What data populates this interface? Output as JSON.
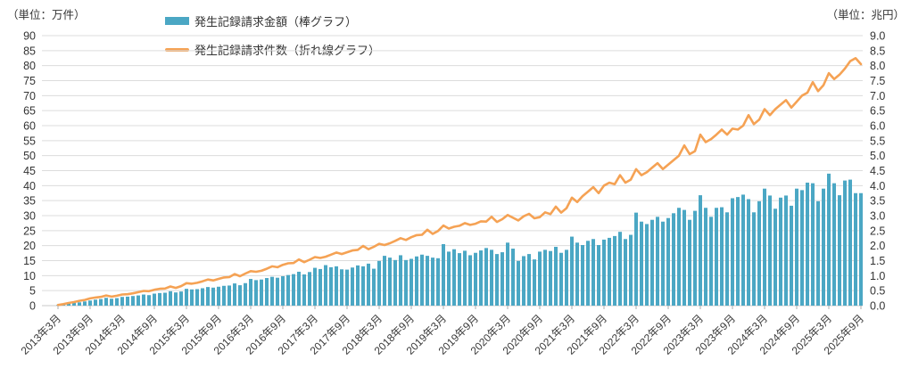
{
  "units": {
    "left": "（単位：万件）",
    "right": "（単位：兆円）"
  },
  "legend": {
    "items": [
      {
        "label": "発生記録請求金額（棒グラフ）",
        "type": "bar",
        "color": "#4BA7C4"
      },
      {
        "label": "発生記録請求件数（折れ線グラフ）",
        "type": "line",
        "color": "#F5A254"
      }
    ]
  },
  "colors": {
    "bar": "#4BA7C4",
    "line": "#F5A254",
    "grid": "#DCDCDC",
    "axis_line": "#C9C9C9",
    "tick": "#ADADAD",
    "text": "#333333",
    "background": "#FFFFFF"
  },
  "chart_data": {
    "type": "bar+line combo (monthly)",
    "start_month": "2013年3月",
    "end_month": "2025年9月",
    "x_tick_labels": [
      "2013年3月",
      "2013年9月",
      "2014年3月",
      "2014年9月",
      "2015年3月",
      "2015年9月",
      "2016年3月",
      "2016年9月",
      "2017年3月",
      "2017年9月",
      "2018年3月",
      "2018年9月",
      "2019年3月",
      "2019年9月",
      "2020年3月",
      "2020年9月",
      "2021年3月",
      "2021年9月",
      "2022年3月",
      "2022年9月",
      "2023年3月",
      "2023年9月",
      "2024年3月",
      "2024年9月",
      "2025年3月",
      "2025年9月"
    ],
    "left_axis": {
      "title": "（単位：万件）",
      "min": 0,
      "max": 90,
      "step": 5,
      "series": "発生記録請求件数"
    },
    "right_axis": {
      "title": "（単位：兆円）",
      "min": 0,
      "max": 9.0,
      "step": 0.5,
      "series": "発生記録請求金額"
    },
    "grid": true,
    "legend_position": "top-left",
    "series": [
      {
        "name": "発生記録請求金額（棒グラフ）",
        "type": "bar",
        "axis": "right",
        "unit": "兆円",
        "color": "#4BA7C4",
        "values": [
          0.02,
          0.04,
          0.06,
          0.09,
          0.11,
          0.14,
          0.17,
          0.2,
          0.22,
          0.26,
          0.23,
          0.25,
          0.29,
          0.3,
          0.32,
          0.34,
          0.37,
          0.35,
          0.4,
          0.42,
          0.43,
          0.48,
          0.44,
          0.47,
          0.56,
          0.54,
          0.55,
          0.58,
          0.62,
          0.6,
          0.63,
          0.66,
          0.67,
          0.74,
          0.68,
          0.75,
          0.89,
          0.85,
          0.87,
          0.92,
          0.96,
          0.93,
          0.98,
          1.02,
          1.05,
          1.13,
          1.04,
          1.12,
          1.26,
          1.22,
          1.35,
          1.28,
          1.31,
          1.21,
          1.2,
          1.27,
          1.34,
          1.31,
          1.4,
          1.23,
          1.49,
          1.66,
          1.6,
          1.52,
          1.68,
          1.52,
          1.56,
          1.64,
          1.7,
          1.66,
          1.6,
          1.58,
          2.05,
          1.8,
          1.88,
          1.75,
          1.83,
          1.68,
          1.76,
          1.84,
          1.92,
          1.86,
          1.72,
          1.78,
          2.1,
          1.9,
          1.49,
          1.65,
          1.72,
          1.54,
          1.8,
          1.86,
          1.82,
          1.96,
          1.76,
          1.86,
          2.3,
          2.1,
          2.02,
          2.16,
          2.22,
          2.02,
          2.2,
          2.26,
          2.32,
          2.46,
          2.22,
          2.36,
          3.1,
          2.8,
          2.72,
          2.86,
          2.96,
          2.8,
          2.92,
          3.08,
          3.26,
          3.19,
          2.86,
          3.16,
          3.68,
          3.26,
          2.96,
          3.26,
          3.28,
          3.11,
          3.58,
          3.62,
          3.7,
          3.55,
          3.11,
          3.48,
          3.9,
          3.67,
          3.23,
          3.6,
          3.67,
          3.33,
          3.9,
          3.85,
          4.1,
          4.08,
          3.48,
          3.9,
          4.4,
          4.08,
          3.68,
          4.17,
          4.2,
          3.75,
          3.75
        ]
      },
      {
        "name": "発生記録請求件数（折れ線グラフ）",
        "type": "line",
        "axis": "left",
        "unit": "万件",
        "color": "#F5A254",
        "values": [
          0.2,
          0.5,
          0.9,
          1.2,
          1.6,
          1.9,
          2.4,
          2.7,
          2.9,
          3.4,
          3.0,
          3.3,
          3.7,
          3.8,
          4.1,
          4.5,
          4.9,
          4.8,
          5.3,
          5.6,
          5.7,
          6.4,
          5.9,
          6.5,
          7.5,
          7.3,
          7.6,
          8.1,
          8.7,
          8.4,
          8.9,
          9.4,
          9.5,
          10.5,
          9.8,
          10.7,
          11.5,
          11.3,
          11.6,
          12.3,
          13.1,
          12.8,
          13.6,
          14.1,
          14.2,
          15.4,
          14.5,
          15.3,
          16.2,
          15.9,
          16.3,
          17.0,
          17.7,
          17.2,
          17.8,
          18.4,
          18.6,
          19.9,
          18.8,
          19.6,
          20.6,
          20.2,
          20.8,
          21.6,
          22.5,
          21.9,
          22.8,
          23.5,
          23.6,
          25.3,
          23.9,
          24.9,
          26.7,
          25.7,
          26.3,
          26.6,
          27.5,
          26.9,
          27.3,
          28.1,
          28.0,
          29.6,
          27.9,
          28.8,
          30.2,
          29.3,
          28.4,
          29.8,
          30.6,
          29.1,
          29.5,
          31.1,
          30.5,
          33.0,
          31.0,
          32.5,
          36.0,
          34.5,
          36.5,
          38.0,
          39.5,
          37.5,
          40.0,
          41.0,
          40.5,
          43.5,
          41.0,
          42.0,
          45.5,
          43.5,
          44.5,
          46.0,
          47.5,
          45.5,
          47.0,
          48.5,
          50.0,
          53.4,
          50.5,
          51.5,
          57.0,
          54.5,
          55.5,
          57.0,
          58.7,
          57.0,
          59.0,
          58.7,
          60.0,
          63.5,
          60.5,
          62.0,
          65.5,
          63.5,
          65.5,
          67.0,
          68.5,
          66.0,
          68.0,
          70.0,
          71.0,
          74.5,
          71.5,
          73.5,
          77.5,
          75.5,
          77.0,
          79.0,
          81.5,
          82.5,
          80.5
        ]
      }
    ]
  }
}
